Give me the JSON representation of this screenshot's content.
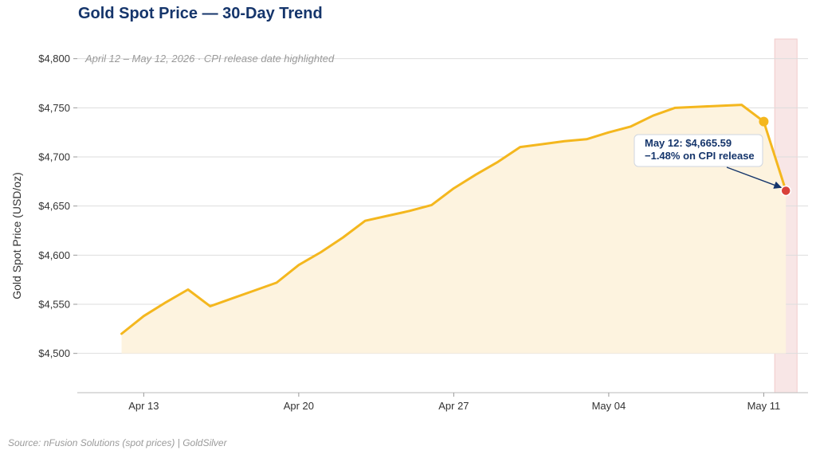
{
  "chart_data": {
    "type": "line",
    "title": "Gold Spot Price — 30-Day Trend",
    "subtitle": "April 12 – May 12, 2026  ·  CPI release date highlighted",
    "xlabel": "",
    "ylabel": "Gold Spot Price (USD/oz)",
    "ylim": [
      4460,
      4820
    ],
    "yticks": [
      4500,
      4550,
      4600,
      4650,
      4700,
      4750,
      4800
    ],
    "ytick_labels": [
      "$4,500",
      "$4,550",
      "$4,600",
      "$4,650",
      "$4,700",
      "$4,750",
      "$4,800"
    ],
    "xlim": [
      "2026-04-10",
      "2026-05-13"
    ],
    "xticks": [
      "2026-04-13",
      "2026-04-20",
      "2026-04-27",
      "2026-05-04",
      "2026-05-11"
    ],
    "xtick_labels": [
      "Apr 13",
      "Apr 20",
      "Apr 27",
      "May 04",
      "May 11"
    ],
    "grid": "horizontal",
    "series": [
      {
        "color": "#f4b71e",
        "x": [
          "2026-04-12",
          "2026-04-13",
          "2026-04-14",
          "2026-04-15",
          "2026-04-16",
          "2026-04-17",
          "2026-04-18",
          "2026-04-19",
          "2026-04-20",
          "2026-04-21",
          "2026-04-22",
          "2026-04-23",
          "2026-04-24",
          "2026-04-25",
          "2026-04-26",
          "2026-04-27",
          "2026-04-28",
          "2026-04-29",
          "2026-04-30",
          "2026-05-01",
          "2026-05-02",
          "2026-05-03",
          "2026-05-04",
          "2026-05-05",
          "2026-05-06",
          "2026-05-07",
          "2026-05-08",
          "2026-05-09",
          "2026-05-10",
          "2026-05-11",
          "2026-05-12"
        ],
        "y": [
          4520,
          4538,
          4552,
          4565,
          4548,
          4556,
          4564,
          4572,
          4590,
          4603,
          4618,
          4635,
          4640,
          4645,
          4651,
          4668,
          4682,
          4695,
          4710,
          4713,
          4716,
          4718,
          4725,
          4731,
          4742,
          4750,
          4751,
          4752,
          4753,
          4736,
          4665.59
        ]
      }
    ],
    "highlight": {
      "date": "2026-05-12",
      "color": "#d9413a",
      "band_color": "#f8e4e4"
    },
    "markers": [
      {
        "x": "2026-05-11",
        "y": 4736,
        "color": "#f4b71e"
      },
      {
        "x": "2026-05-12",
        "y": 4665.59,
        "color": "#d9413a"
      }
    ],
    "annotation": {
      "line1": "May 12: $4,665.59",
      "line2": "−1.48% on CPI release",
      "target_x": "2026-05-12",
      "target_y": 4665.59
    },
    "area_fill_color": "#fdf3df",
    "source": "Source: nFusion Solutions (spot prices) | GoldSilver"
  }
}
